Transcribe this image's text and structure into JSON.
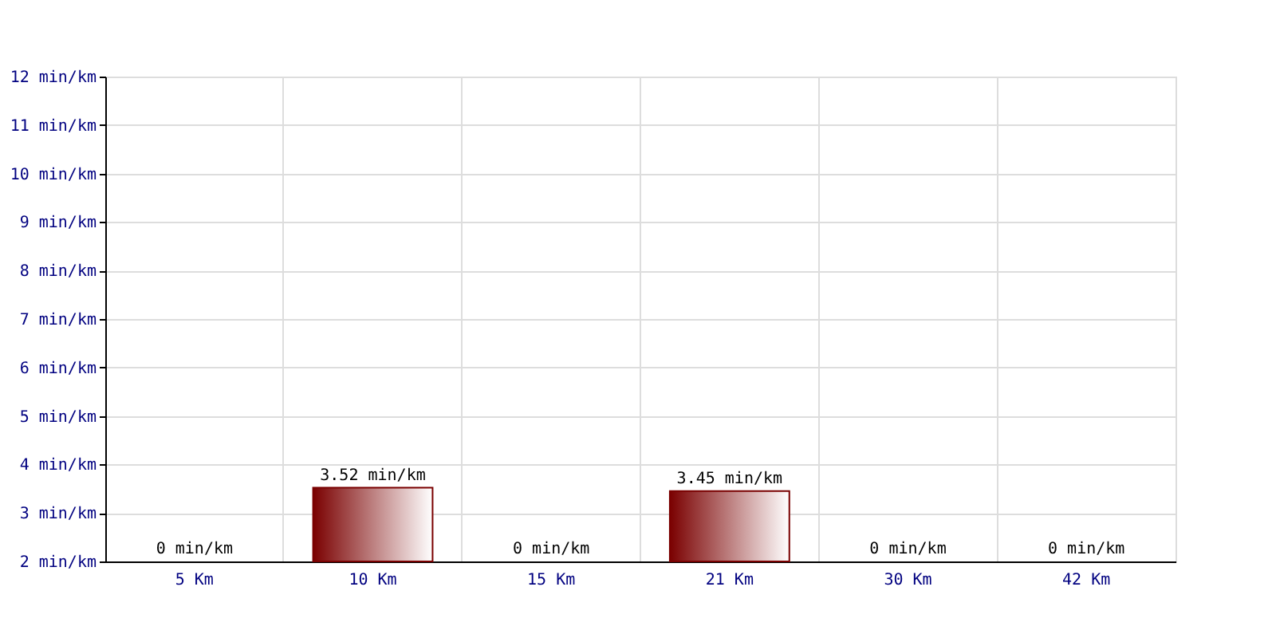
{
  "chart_data": {
    "type": "bar",
    "categories": [
      "5 Km",
      "10 Km",
      "15 Km",
      "21 Km",
      "30 Km",
      "42 Km"
    ],
    "values": [
      null,
      3.52,
      null,
      3.45,
      null,
      null
    ],
    "value_labels": [
      "0 min/km",
      "3.52 min/km",
      "0 min/km",
      "3.45 min/km",
      "0 min/km",
      "0 min/km"
    ],
    "color": "#7a0000",
    "ylim": [
      2,
      12
    ],
    "yticks": [
      {
        "value": 2,
        "label": "2 min/km"
      },
      {
        "value": 3,
        "label": "3 min/km"
      },
      {
        "value": 4,
        "label": "4 min/km"
      },
      {
        "value": 5,
        "label": "5 min/km"
      },
      {
        "value": 6,
        "label": "6 min/km"
      },
      {
        "value": 7,
        "label": "7 min/km"
      },
      {
        "value": 8,
        "label": "8 min/km"
      },
      {
        "value": 9,
        "label": "9 min/km"
      },
      {
        "value": 10,
        "label": "10 min/km"
      },
      {
        "value": 11,
        "label": "11 min/km"
      },
      {
        "value": 12,
        "label": "12 min/km"
      }
    ],
    "grid": true
  }
}
